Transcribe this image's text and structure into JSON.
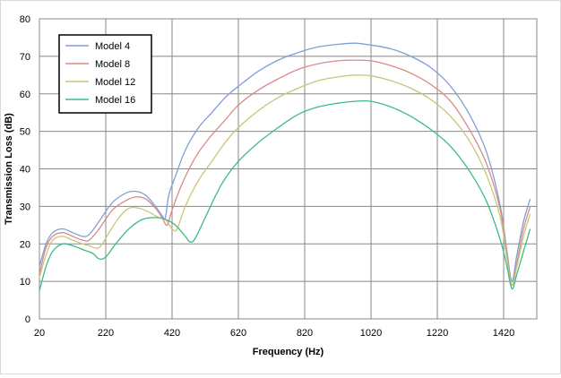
{
  "chart_data": {
    "type": "line",
    "xlabel": "Frequency (Hz)",
    "ylabel": "Transmission Loss (dB)",
    "xlim": [
      20,
      1520
    ],
    "ylim": [
      0,
      80
    ],
    "x_ticks": [
      20,
      220,
      420,
      620,
      820,
      1020,
      1220,
      1420
    ],
    "y_ticks": [
      0,
      10,
      20,
      30,
      40,
      50,
      60,
      70,
      80
    ],
    "x_tick_labels": [
      "20",
      "220",
      "420",
      "620",
      "820",
      "1020",
      "1220",
      "1420"
    ],
    "y_tick_labels": [
      "0",
      "10",
      "20",
      "30",
      "40",
      "50",
      "60",
      "70",
      "80"
    ],
    "grid": true,
    "legend_position": "top-left",
    "series": [
      {
        "name": "Model 4",
        "color": "#7f9fd6",
        "points": [
          [
            20,
            14
          ],
          [
            40,
            20
          ],
          [
            60,
            23
          ],
          [
            90,
            24
          ],
          [
            120,
            23
          ],
          [
            150,
            22
          ],
          [
            170,
            22.5
          ],
          [
            200,
            26
          ],
          [
            240,
            31
          ],
          [
            280,
            33.5
          ],
          [
            310,
            34
          ],
          [
            340,
            33
          ],
          [
            370,
            30
          ],
          [
            390,
            27.5
          ],
          [
            400,
            27
          ],
          [
            410,
            33
          ],
          [
            430,
            38
          ],
          [
            460,
            45
          ],
          [
            500,
            51
          ],
          [
            540,
            55
          ],
          [
            580,
            59
          ],
          [
            620,
            62
          ],
          [
            680,
            66
          ],
          [
            740,
            69
          ],
          [
            800,
            71
          ],
          [
            860,
            72.5
          ],
          [
            920,
            73.2
          ],
          [
            970,
            73.5
          ],
          [
            1020,
            73
          ],
          [
            1080,
            72
          ],
          [
            1140,
            70
          ],
          [
            1200,
            67
          ],
          [
            1260,
            62
          ],
          [
            1320,
            54
          ],
          [
            1370,
            44
          ],
          [
            1410,
            30
          ],
          [
            1430,
            18
          ],
          [
            1445,
            10
          ],
          [
            1460,
            17
          ],
          [
            1480,
            26
          ],
          [
            1500,
            32
          ]
        ]
      },
      {
        "name": "Model 8",
        "color": "#d98a88",
        "points": [
          [
            20,
            12
          ],
          [
            40,
            19
          ],
          [
            60,
            22
          ],
          [
            90,
            23
          ],
          [
            120,
            22
          ],
          [
            150,
            21
          ],
          [
            170,
            21
          ],
          [
            200,
            24
          ],
          [
            240,
            29
          ],
          [
            280,
            31.5
          ],
          [
            310,
            32.5
          ],
          [
            340,
            32
          ],
          [
            370,
            29.5
          ],
          [
            390,
            27
          ],
          [
            405,
            25
          ],
          [
            420,
            29
          ],
          [
            450,
            36
          ],
          [
            490,
            43
          ],
          [
            530,
            48
          ],
          [
            580,
            53
          ],
          [
            620,
            57
          ],
          [
            680,
            61
          ],
          [
            740,
            64
          ],
          [
            800,
            66.5
          ],
          [
            860,
            68
          ],
          [
            920,
            68.8
          ],
          [
            970,
            69
          ],
          [
            1020,
            68.8
          ],
          [
            1080,
            67.5
          ],
          [
            1140,
            65.5
          ],
          [
            1200,
            62.5
          ],
          [
            1260,
            58
          ],
          [
            1320,
            50
          ],
          [
            1370,
            41
          ],
          [
            1410,
            29
          ],
          [
            1430,
            17
          ],
          [
            1445,
            9
          ],
          [
            1460,
            15
          ],
          [
            1480,
            24
          ],
          [
            1500,
            30
          ]
        ]
      },
      {
        "name": "Model 12",
        "color": "#c9c57a",
        "points": [
          [
            20,
            11
          ],
          [
            40,
            17
          ],
          [
            60,
            21
          ],
          [
            90,
            22
          ],
          [
            120,
            21
          ],
          [
            150,
            20
          ],
          [
            170,
            19.5
          ],
          [
            200,
            19
          ],
          [
            230,
            23
          ],
          [
            260,
            27
          ],
          [
            290,
            29.5
          ],
          [
            320,
            29.5
          ],
          [
            350,
            28.5
          ],
          [
            380,
            27
          ],
          [
            400,
            26.5
          ],
          [
            420,
            24
          ],
          [
            435,
            24
          ],
          [
            460,
            30
          ],
          [
            500,
            37
          ],
          [
            540,
            42
          ],
          [
            580,
            47
          ],
          [
            620,
            51
          ],
          [
            680,
            55.5
          ],
          [
            740,
            59
          ],
          [
            800,
            61.5
          ],
          [
            860,
            63.5
          ],
          [
            920,
            64.5
          ],
          [
            970,
            65
          ],
          [
            1020,
            64.8
          ],
          [
            1080,
            63.5
          ],
          [
            1140,
            61.5
          ],
          [
            1200,
            58.5
          ],
          [
            1260,
            54
          ],
          [
            1320,
            47
          ],
          [
            1370,
            38
          ],
          [
            1410,
            27
          ],
          [
            1430,
            16
          ],
          [
            1445,
            9
          ],
          [
            1460,
            14
          ],
          [
            1480,
            22
          ],
          [
            1500,
            28
          ]
        ]
      },
      {
        "name": "Model 16",
        "color": "#3dbb84",
        "points": [
          [
            20,
            7.5
          ],
          [
            40,
            14
          ],
          [
            60,
            18
          ],
          [
            90,
            20
          ],
          [
            120,
            19.5
          ],
          [
            150,
            18.5
          ],
          [
            180,
            17.5
          ],
          [
            200,
            16
          ],
          [
            220,
            16.5
          ],
          [
            250,
            20
          ],
          [
            290,
            24
          ],
          [
            330,
            26.5
          ],
          [
            370,
            27
          ],
          [
            400,
            26.5
          ],
          [
            430,
            25
          ],
          [
            460,
            22
          ],
          [
            475,
            20.5
          ],
          [
            490,
            21.5
          ],
          [
            520,
            27
          ],
          [
            570,
            36
          ],
          [
            620,
            42
          ],
          [
            680,
            47
          ],
          [
            740,
            51
          ],
          [
            800,
            54.5
          ],
          [
            860,
            56.5
          ],
          [
            920,
            57.5
          ],
          [
            970,
            58
          ],
          [
            1020,
            58
          ],
          [
            1080,
            56.5
          ],
          [
            1140,
            54
          ],
          [
            1200,
            50.5
          ],
          [
            1260,
            46
          ],
          [
            1320,
            39
          ],
          [
            1370,
            31
          ],
          [
            1410,
            21
          ],
          [
            1430,
            14
          ],
          [
            1445,
            8
          ],
          [
            1460,
            12
          ],
          [
            1480,
            18
          ],
          [
            1500,
            24
          ]
        ]
      }
    ]
  }
}
